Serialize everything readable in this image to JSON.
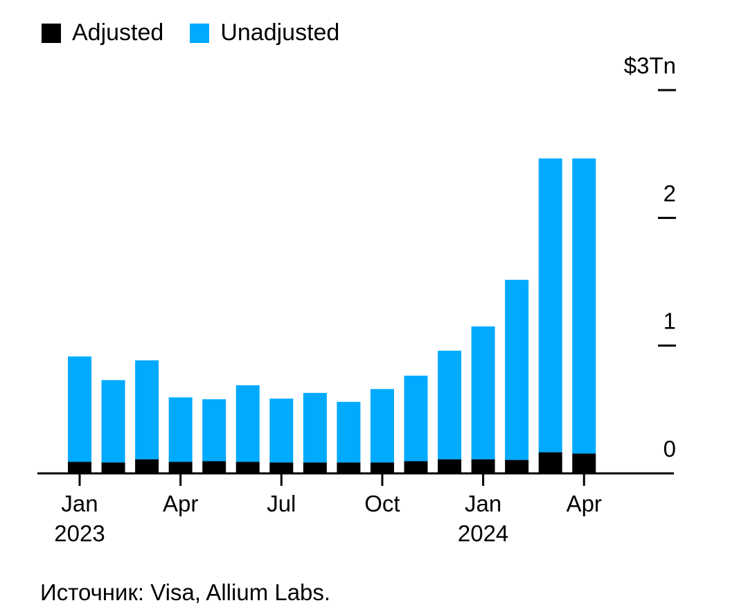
{
  "legend": {
    "adjusted_label": "Adjusted",
    "unadjusted_label": "Unadjusted"
  },
  "colors": {
    "adjusted": "#000000",
    "unadjusted": "#00aaff",
    "axis": "#000000"
  },
  "source": "Источник: Visa, Allium Labs.",
  "chart_data": {
    "type": "bar",
    "stacked": true,
    "categories": [
      "Jan 2023",
      "Feb 2023",
      "Mar 2023",
      "Apr 2023",
      "May 2023",
      "Jun 2023",
      "Jul 2023",
      "Aug 2023",
      "Sep 2023",
      "Oct 2023",
      "Nov 2023",
      "Dec 2023",
      "Jan 2024",
      "Feb 2024",
      "Mar 2024",
      "Apr 2024"
    ],
    "series": [
      {
        "name": "Adjusted",
        "values": [
          0.09,
          0.085,
          0.11,
          0.09,
          0.095,
          0.09,
          0.085,
          0.085,
          0.085,
          0.085,
          0.095,
          0.11,
          0.11,
          0.105,
          0.165,
          0.155
        ]
      },
      {
        "name": "Unadjusted",
        "values": [
          0.825,
          0.645,
          0.775,
          0.505,
          0.485,
          0.6,
          0.5,
          0.545,
          0.475,
          0.575,
          0.67,
          0.85,
          1.04,
          1.41,
          2.3,
          2.31
        ]
      }
    ],
    "y_axis": {
      "ylim": [
        0,
        3
      ],
      "position": "right",
      "ticks": [
        {
          "value": 0,
          "label": "0"
        },
        {
          "value": 1,
          "label": "1"
        },
        {
          "value": 2,
          "label": "2"
        },
        {
          "value": 3,
          "label": "$3Tn"
        }
      ]
    },
    "x_ticks": [
      {
        "index": 0,
        "line1": "Jan",
        "line2": "2023"
      },
      {
        "index": 3,
        "line1": "Apr",
        "line2": ""
      },
      {
        "index": 6,
        "line1": "Jul",
        "line2": ""
      },
      {
        "index": 9,
        "line1": "Oct",
        "line2": ""
      },
      {
        "index": 12,
        "line1": "Jan",
        "line2": "2024"
      },
      {
        "index": 15,
        "line1": "Apr",
        "line2": ""
      }
    ],
    "legend_position": "top-left",
    "grid": false
  }
}
